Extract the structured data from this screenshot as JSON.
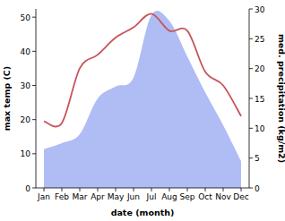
{
  "chart_data": {
    "type": "line",
    "x_label": "date (month)",
    "y_label": "max temp (C)",
    "y2_label": "med. precipitation (kg/m2)",
    "categories": [
      "Jan",
      "Feb",
      "Mar",
      "Apr",
      "May",
      "Jun",
      "Jul",
      "Aug",
      "Sep",
      "Oct",
      "Nov",
      "Dec"
    ],
    "series": [
      {
        "name": "med. precipitation",
        "type": "area",
        "axis": "y2",
        "color": "#b0bdf4",
        "values": [
          6.5,
          7.5,
          9,
          15,
          17,
          18.5,
          29,
          28,
          22,
          16,
          10.5,
          4.5
        ]
      },
      {
        "name": "max temp",
        "type": "line",
        "color": "#c8535a",
        "values": [
          19.5,
          19,
          35,
          39,
          44,
          47,
          51,
          46,
          46,
          34,
          30,
          21
        ]
      }
    ],
    "ylim": [
      0,
      52.4
    ],
    "yticks": [
      0,
      10,
      20,
      30,
      40,
      50
    ],
    "y2lim": [
      0,
      30
    ],
    "y2ticks": [
      0,
      5,
      10,
      15,
      20,
      25,
      30
    ],
    "grid": false
  }
}
